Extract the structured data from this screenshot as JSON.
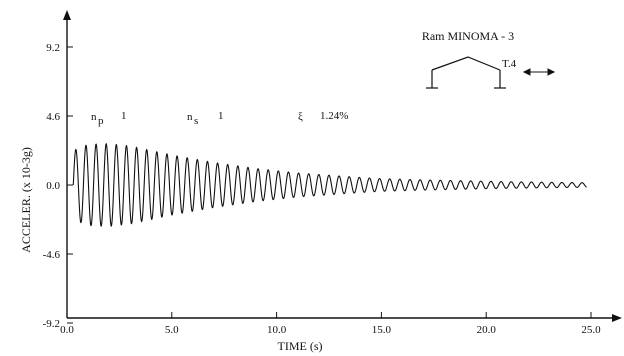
{
  "chart_data": {
    "type": "line",
    "title": "Ram MINOMA - 3",
    "xlabel": "TIME (s)",
    "ylabel": "ACCELER. (x 10-3g)",
    "xlim": [
      0,
      25
    ],
    "ylim": [
      -9.2,
      9.2
    ],
    "x_ticks": [
      "0.0",
      "5.0",
      "10.0",
      "15.0",
      "20.0",
      "25.0"
    ],
    "y_ticks": [
      "9.2",
      "4.6",
      "0.0",
      "-4.6",
      "-9.2"
    ],
    "grid": false,
    "legend": "none",
    "annotations": {
      "np": "n",
      "np_sub": "p",
      "np_value": "1",
      "ns": "n",
      "ns_sub": "s",
      "ns_value": "1",
      "xi": "ξ",
      "xi_value": "1.24%",
      "sensor": "T.4"
    },
    "series": [
      {
        "frequency_hz": 2.07,
        "start_time_s": 0.3,
        "end_time_s": 24.8,
        "envelope": {
          "x": [
            0.3,
            1.0,
            2.0,
            3.0,
            4.0,
            5.0,
            6.0,
            7.0,
            8.0,
            9.0,
            10.0,
            11.0,
            12.0,
            13.0,
            14.0,
            15.0,
            17.0,
            19.0,
            21.0,
            23.0,
            24.8
          ],
          "y": [
            2.3,
            2.7,
            2.75,
            2.6,
            2.3,
            2.0,
            1.75,
            1.5,
            1.3,
            1.1,
            0.95,
            0.8,
            0.7,
            0.6,
            0.5,
            0.42,
            0.34,
            0.28,
            0.22,
            0.18,
            0.15
          ]
        }
      }
    ]
  },
  "colors": {
    "ink": "#111111",
    "background": "#ffffff"
  }
}
